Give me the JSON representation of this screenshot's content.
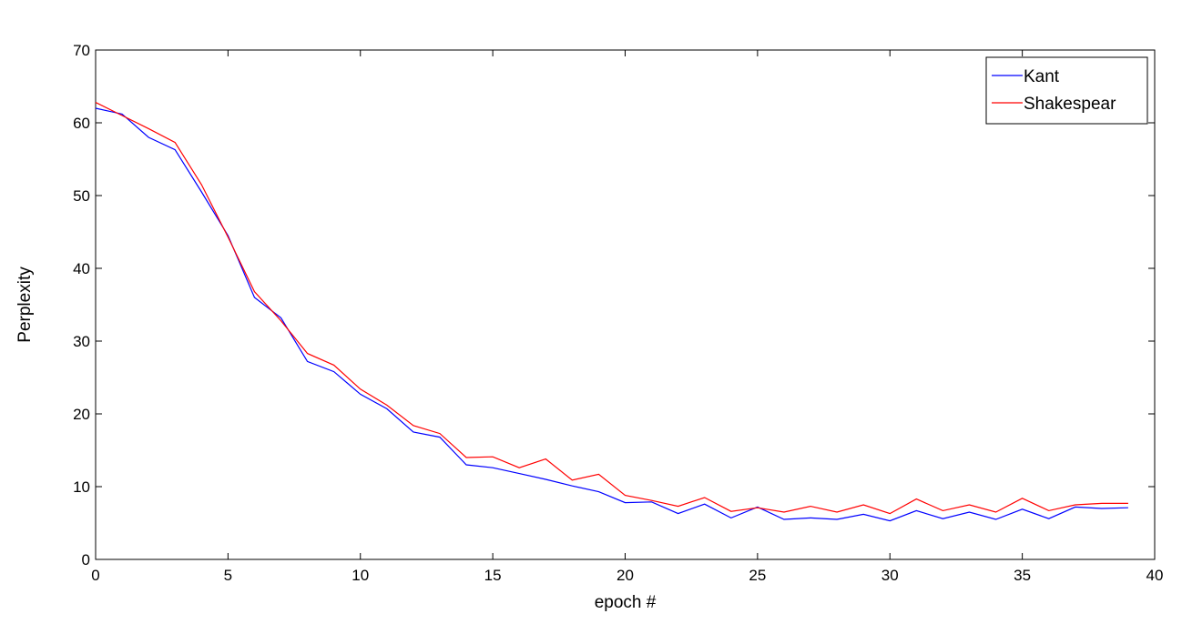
{
  "chart_data": {
    "type": "line",
    "xlabel": "epoch #",
    "ylabel": "Perplexity",
    "xlim": [
      0,
      40
    ],
    "ylim": [
      0,
      70
    ],
    "xticks": [
      0,
      5,
      10,
      15,
      20,
      25,
      30,
      35,
      40
    ],
    "yticks": [
      0,
      10,
      20,
      30,
      40,
      50,
      60,
      70
    ],
    "grid": false,
    "legend_position": "top-right",
    "x": [
      0,
      1,
      2,
      3,
      4,
      5,
      6,
      7,
      8,
      9,
      10,
      11,
      12,
      13,
      14,
      15,
      16,
      17,
      18,
      19,
      20,
      21,
      22,
      23,
      24,
      25,
      26,
      27,
      28,
      29,
      30,
      31,
      32,
      33,
      34,
      35,
      36,
      37,
      38,
      39
    ],
    "series": [
      {
        "name": "Kant",
        "color": "#0000ff",
        "values": [
          62.0,
          61.2,
          58.0,
          56.3,
          50.5,
          44.5,
          36.0,
          33.2,
          27.2,
          25.8,
          22.7,
          20.7,
          17.5,
          16.8,
          13.0,
          12.6,
          11.8,
          11.0,
          10.1,
          9.3,
          7.8,
          7.9,
          6.3,
          7.6,
          5.7,
          7.2,
          5.5,
          5.7,
          5.5,
          6.2,
          5.3,
          6.7,
          5.6,
          6.5,
          5.5,
          6.9,
          5.6,
          7.2,
          7.0,
          7.1
        ]
      },
      {
        "name": "Shakespear",
        "color": "#ff0000",
        "values": [
          62.8,
          61.0,
          59.2,
          57.3,
          51.5,
          44.3,
          36.8,
          32.8,
          28.3,
          26.7,
          23.4,
          21.2,
          18.4,
          17.3,
          14.0,
          14.1,
          12.6,
          13.8,
          10.9,
          11.7,
          8.8,
          8.1,
          7.3,
          8.5,
          6.6,
          7.1,
          6.5,
          7.3,
          6.5,
          7.5,
          6.3,
          8.3,
          6.7,
          7.5,
          6.5,
          8.4,
          6.7,
          7.5,
          7.7,
          7.7
        ]
      }
    ]
  }
}
